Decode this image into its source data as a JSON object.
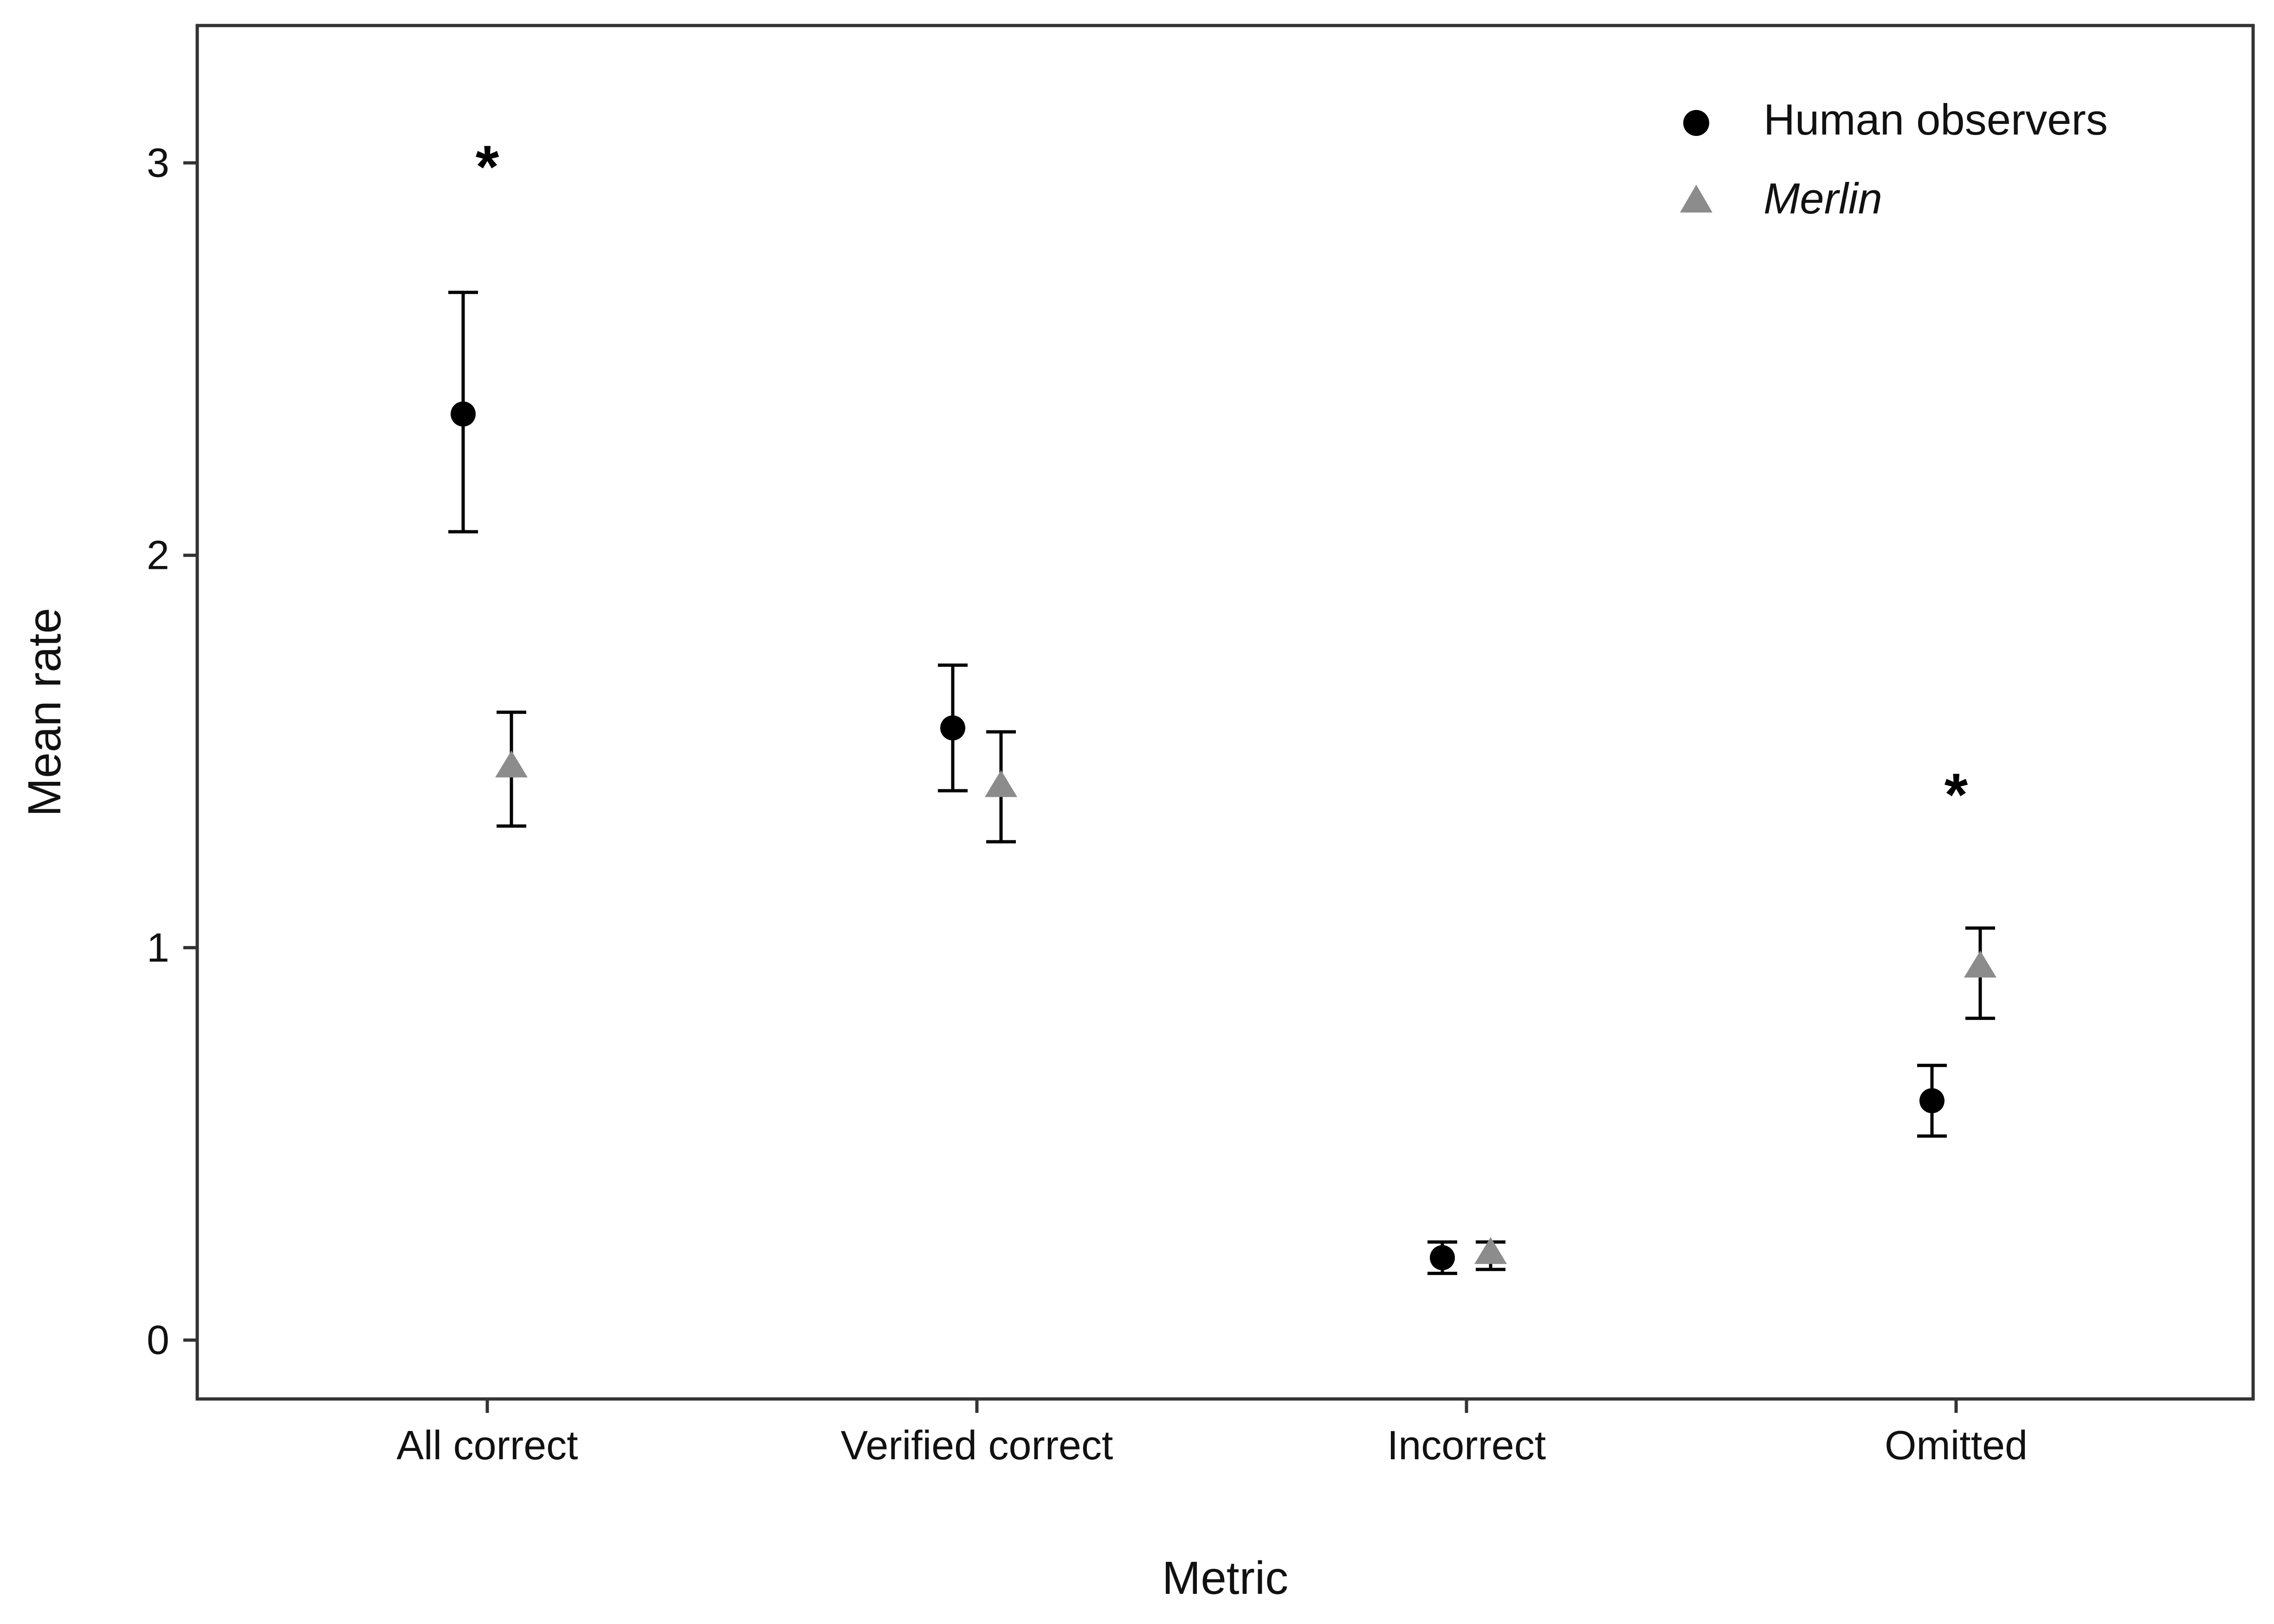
{
  "chart_data": {
    "type": "scatter",
    "xlabel": "Metric",
    "ylabel": "Mean rate",
    "categories": [
      "All correct",
      "Verified correct",
      "Incorrect",
      "Omitted"
    ],
    "ylim": [
      -0.15,
      3.35
    ],
    "yticks": [
      0,
      1,
      2,
      3
    ],
    "grid": false,
    "legend_position": "top-right",
    "series": [
      {
        "name": "Human observers",
        "marker": "circle",
        "color": "#000000",
        "values": [
          2.36,
          1.56,
          0.21,
          0.61
        ],
        "lower": [
          2.06,
          1.4,
          0.17,
          0.52
        ],
        "upper": [
          2.67,
          1.72,
          0.25,
          0.7
        ]
      },
      {
        "name": "Merlin",
        "marker": "triangle",
        "color": "#8c8c8c",
        "values": [
          1.46,
          1.41,
          0.22,
          0.95
        ],
        "lower": [
          1.31,
          1.27,
          0.18,
          0.82
        ],
        "upper": [
          1.6,
          1.55,
          0.25,
          1.05
        ]
      }
    ],
    "annotations": [
      {
        "category_index": 0,
        "text": "*",
        "y": 3.02
      },
      {
        "category_index": 3,
        "text": "*",
        "y": 1.42
      }
    ]
  }
}
